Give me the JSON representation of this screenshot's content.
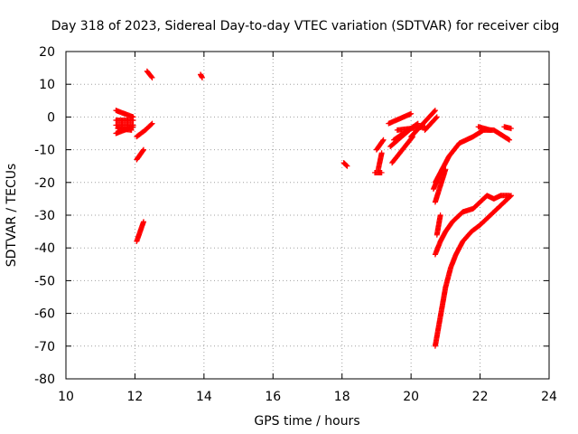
{
  "chart_data": {
    "type": "scatter",
    "title": "Day 318 of 2023, Sidereal Day-to-day VTEC variation (SDTVAR) for receiver cibg",
    "xlabel": "GPS time / hours",
    "ylabel": "SDTVAR / TECUs",
    "xlim": [
      10,
      24
    ],
    "ylim": [
      -80,
      20
    ],
    "xticks": [
      10,
      12,
      14,
      16,
      18,
      20,
      22,
      24
    ],
    "yticks": [
      20,
      10,
      0,
      -10,
      -20,
      -30,
      -40,
      -50,
      -60,
      -70,
      -80
    ],
    "grid": true,
    "marker": "+",
    "color": "#ff0000",
    "segments": [
      {
        "x0": 11.45,
        "y0": 2,
        "x1": 11.95,
        "y1": 0
      },
      {
        "x0": 11.45,
        "y0": -1,
        "x1": 11.95,
        "y1": -1
      },
      {
        "x0": 11.45,
        "y0": -2.5,
        "x1": 11.95,
        "y1": -2.5
      },
      {
        "x0": 11.45,
        "y0": -5,
        "x1": 11.95,
        "y1": -3
      },
      {
        "x0": 11.5,
        "y0": -3.5,
        "x1": 11.9,
        "y1": -4
      },
      {
        "x0": 12.05,
        "y0": -6,
        "x1": 12.3,
        "y1": -4
      },
      {
        "x0": 12.3,
        "y0": -4,
        "x1": 12.5,
        "y1": -2
      },
      {
        "x0": 12.05,
        "y0": -13,
        "x1": 12.25,
        "y1": -10
      },
      {
        "x0": 12.35,
        "y0": 14,
        "x1": 12.5,
        "y1": 12
      },
      {
        "x0": 12.05,
        "y0": -38,
        "x1": 12.25,
        "y1": -32
      },
      {
        "x0": 13.9,
        "y0": 13,
        "x1": 13.95,
        "y1": 12
      },
      {
        "x0": 18.05,
        "y0": -14,
        "x1": 18.15,
        "y1": -15
      },
      {
        "x0": 19.0,
        "y0": -10,
        "x1": 19.2,
        "y1": -7
      },
      {
        "x0": 18.95,
        "y0": -17,
        "x1": 19.15,
        "y1": -17
      },
      {
        "x0": 19.05,
        "y0": -16,
        "x1": 19.15,
        "y1": -11
      },
      {
        "x0": 19.35,
        "y0": -2,
        "x1": 20.0,
        "y1": 1
      },
      {
        "x0": 19.45,
        "y0": -14,
        "x1": 20.05,
        "y1": -6
      },
      {
        "x0": 19.4,
        "y0": -9,
        "x1": 19.95,
        "y1": -4
      },
      {
        "x0": 19.5,
        "y0": -7,
        "x1": 20.2,
        "y1": -2
      },
      {
        "x0": 19.6,
        "y0": -4,
        "x1": 20.4,
        "y1": -3
      },
      {
        "x0": 20.0,
        "y0": -6,
        "x1": 20.7,
        "y1": 2
      },
      {
        "x0": 20.4,
        "y0": -4,
        "x1": 20.75,
        "y1": 0
      },
      {
        "x0": 20.65,
        "y0": -22,
        "x1": 20.9,
        "y1": -16
      },
      {
        "x0": 20.7,
        "y0": -26,
        "x1": 21.0,
        "y1": -16
      },
      {
        "x0": 20.75,
        "y0": -36,
        "x1": 20.85,
        "y1": -30
      },
      {
        "x0": 21.95,
        "y0": -3,
        "x1": 22.3,
        "y1": -4
      },
      {
        "x0": 22.7,
        "y0": -3,
        "x1": 22.9,
        "y1": -3.5
      }
    ],
    "curves": [
      {
        "x": [
          20.7,
          20.9,
          21.1,
          21.4,
          21.8,
          22.1,
          22.4,
          22.7,
          22.85
        ],
        "y": [
          -20,
          -16,
          -12,
          -8,
          -6,
          -4,
          -4,
          -6,
          -7
        ]
      },
      {
        "x": [
          20.7,
          20.85,
          21.0,
          21.2,
          21.5,
          21.8,
          22.0,
          22.2,
          22.4,
          22.6,
          22.85
        ],
        "y": [
          -42,
          -38,
          -35,
          -32,
          -29,
          -28,
          -26,
          -24,
          -25,
          -24,
          -24
        ]
      },
      {
        "x": [
          20.7,
          20.8,
          20.9,
          21.0,
          21.15,
          21.3,
          21.5,
          21.75,
          22.0,
          22.3,
          22.6,
          22.8,
          22.9
        ],
        "y": [
          -70,
          -64,
          -58,
          -52,
          -46,
          -42,
          -38,
          -35,
          -33,
          -30,
          -27,
          -25,
          -24
        ]
      }
    ]
  }
}
